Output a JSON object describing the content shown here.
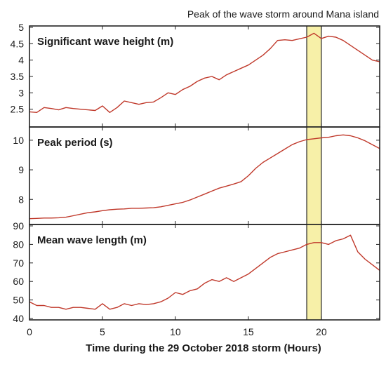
{
  "chart_data": {
    "type": "line",
    "title": "Peak of the wave storm around Mana island",
    "xlabel": "Time during the 29 October 2018 storm (Hours)",
    "x_range": [
      0,
      24
    ],
    "x_ticks": [
      0,
      5,
      10,
      15,
      20
    ],
    "highlight": {
      "x_start": 19,
      "x_end": 20,
      "color": "#f7f0a8"
    },
    "colors": {
      "line": "#c0392b",
      "frame": "#222222",
      "highlight_edge": "#222222"
    },
    "grid": false,
    "panels": [
      {
        "name": "wave-height",
        "title": "Significant wave height (m)",
        "ylim": [
          2,
          5
        ],
        "y_ticks": [
          2.5,
          3,
          3.5,
          4,
          4.5,
          5
        ],
        "y_tick_labels": [
          "2.5",
          "3",
          "3.5",
          "4",
          "4.5",
          "5"
        ],
        "x": [
          0,
          0.5,
          1,
          1.5,
          2,
          2.5,
          3,
          3.5,
          4,
          4.5,
          5,
          5.5,
          6,
          6.5,
          7,
          7.5,
          8,
          8.5,
          9,
          9.5,
          10,
          10.5,
          11,
          11.5,
          12,
          12.5,
          13,
          13.5,
          14,
          14.5,
          15,
          15.5,
          16,
          16.5,
          17,
          17.5,
          18,
          18.5,
          19,
          19.5,
          20,
          20.5,
          21,
          21.5,
          22,
          22.5,
          23,
          23.5,
          24
        ],
        "values": [
          2.42,
          2.4,
          2.55,
          2.52,
          2.48,
          2.55,
          2.52,
          2.5,
          2.48,
          2.46,
          2.6,
          2.4,
          2.55,
          2.75,
          2.7,
          2.65,
          2.7,
          2.72,
          2.85,
          3.0,
          2.95,
          3.1,
          3.2,
          3.35,
          3.45,
          3.5,
          3.4,
          3.55,
          3.65,
          3.75,
          3.85,
          4.0,
          4.15,
          4.35,
          4.6,
          4.62,
          4.6,
          4.65,
          4.7,
          4.82,
          4.66,
          4.73,
          4.7,
          4.6,
          4.45,
          4.3,
          4.15,
          4.0,
          3.95
        ]
      },
      {
        "name": "peak-period",
        "title": "Peak period (s)",
        "ylim": [
          7.2,
          10.4
        ],
        "y_ticks": [
          8,
          9,
          10
        ],
        "y_tick_labels": [
          "8",
          "9",
          "10"
        ],
        "x": [
          0,
          0.5,
          1,
          1.5,
          2,
          2.5,
          3,
          3.5,
          4,
          4.5,
          5,
          5.5,
          6,
          6.5,
          7,
          7.5,
          8,
          8.5,
          9,
          9.5,
          10,
          10.5,
          11,
          11.5,
          12,
          12.5,
          13,
          13.5,
          14,
          14.5,
          15,
          15.5,
          16,
          16.5,
          17,
          17.5,
          18,
          18.5,
          19,
          19.5,
          20,
          20.5,
          21,
          21.5,
          22,
          22.5,
          23,
          23.5,
          24
        ],
        "values": [
          7.35,
          7.36,
          7.37,
          7.37,
          7.38,
          7.4,
          7.45,
          7.5,
          7.55,
          7.58,
          7.62,
          7.65,
          7.67,
          7.68,
          7.7,
          7.7,
          7.71,
          7.72,
          7.75,
          7.8,
          7.85,
          7.9,
          7.98,
          8.08,
          8.18,
          8.28,
          8.38,
          8.45,
          8.52,
          8.6,
          8.8,
          9.05,
          9.25,
          9.4,
          9.55,
          9.7,
          9.85,
          9.95,
          10.02,
          10.05,
          10.08,
          10.1,
          10.15,
          10.18,
          10.15,
          10.08,
          9.98,
          9.85,
          9.72
        ]
      },
      {
        "name": "wave-length",
        "title": "Mean wave length (m)",
        "ylim": [
          40,
          90
        ],
        "y_ticks": [
          40,
          50,
          60,
          70,
          80,
          90
        ],
        "y_tick_labels": [
          "40",
          "50",
          "60",
          "70",
          "80",
          "90"
        ],
        "x": [
          0,
          0.5,
          1,
          1.5,
          2,
          2.5,
          3,
          3.5,
          4,
          4.5,
          5,
          5.5,
          6,
          6.5,
          7,
          7.5,
          8,
          8.5,
          9,
          9.5,
          10,
          10.5,
          11,
          11.5,
          12,
          12.5,
          13,
          13.5,
          14,
          14.5,
          15,
          15.5,
          16,
          16.5,
          17,
          17.5,
          18,
          18.5,
          19,
          19.5,
          20,
          20.5,
          21,
          21.5,
          22,
          22.5,
          23,
          23.5,
          24
        ],
        "values": [
          49,
          47,
          47,
          46,
          46,
          45,
          46,
          46,
          45.5,
          45,
          48,
          45,
          46,
          48,
          47,
          48,
          47.5,
          48,
          49,
          51,
          54,
          53,
          55,
          56,
          59,
          61,
          60,
          62,
          60,
          62,
          64,
          67,
          70,
          73,
          75,
          76,
          77,
          78,
          80,
          81,
          81,
          80,
          82,
          83,
          85,
          76,
          72,
          69,
          66
        ]
      }
    ]
  }
}
